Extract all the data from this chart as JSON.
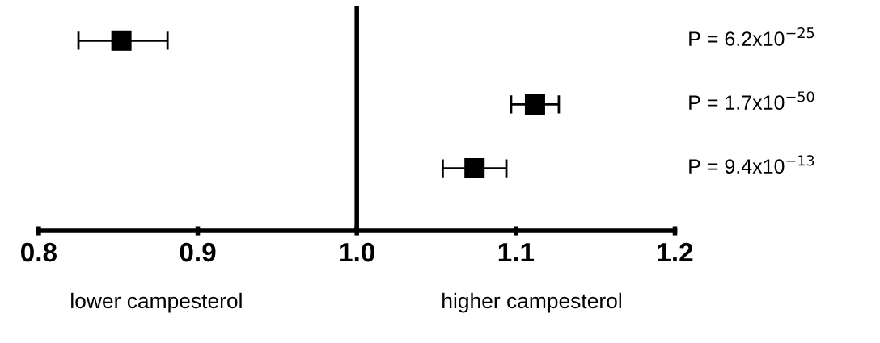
{
  "chart_data": {
    "type": "scatter",
    "orientation": "horizontal",
    "marker": "square",
    "categories": [
      null,
      null,
      null
    ],
    "series": [
      {
        "color": "#000000",
        "values": [
          0.852,
          1.112,
          1.074
        ],
        "errors": [
          [
            0.825,
            0.881
          ],
          [
            1.097,
            1.127
          ],
          [
            1.054,
            1.094
          ]
        ]
      }
    ],
    "xlim": [
      0.8,
      1.2
    ],
    "xticks": [
      {
        "value": 0.8,
        "label": "0.8"
      },
      {
        "value": 0.9,
        "label": "0.9"
      },
      {
        "value": 1.0,
        "label": "1.0"
      },
      {
        "value": 1.1,
        "label": "1.1"
      },
      {
        "value": 1.2,
        "label": "1.2"
      }
    ],
    "tick_labels": "x",
    "grid": false,
    "legend": false,
    "ref_lines": [
      {
        "axis": "x",
        "value": 1.0,
        "color": "#000000"
      }
    ],
    "annotations": [
      "P = 6.2x10$^{−25}$",
      "P = 1.7x10$^{−50}$",
      "P = 9.4x10$^{−13}$",
      "lower campesterol",
      "higher campesterol"
    ]
  }
}
